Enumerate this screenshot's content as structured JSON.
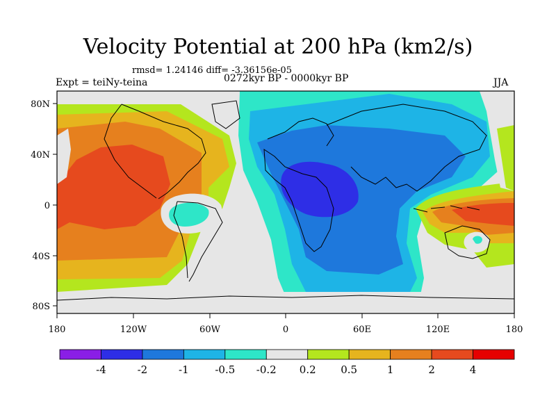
{
  "title": "Velocity Potential at 200 hPa (km2/s)",
  "stats": "rmsd= 1.24146 diff= -3.36156e-05",
  "experiment": "Expt = teiNy-teina",
  "period": "0272kyr BP - 0000kyr BP",
  "season": "JJA",
  "chart_data": {
    "type": "heatmap",
    "map_projection": "cylindrical-equidistant",
    "lon_range": [
      -180,
      180
    ],
    "lat_range": [
      -90,
      90
    ],
    "x_tick_labels": [
      "180",
      "120W",
      "60W",
      "0",
      "60E",
      "120E",
      "180"
    ],
    "y_tick_labels": [
      "80N",
      "40N",
      "0",
      "40S",
      "80S"
    ],
    "colorbar": {
      "tick_labels": [
        "-4",
        "-2",
        "-1",
        "-0.5",
        "-0.2",
        "0.2",
        "0.5",
        "1",
        "2",
        "4"
      ],
      "colors": [
        "#8a1ee6",
        "#2e2ee6",
        "#1e78dc",
        "#1eb4e6",
        "#2ee6c8",
        "#e6e6e6",
        "#b4e61e",
        "#e6b41e",
        "#e6801e",
        "#e64a1e",
        "#e60000"
      ]
    },
    "features": [
      {
        "region": "tropical Africa / Indian Ocean",
        "sign": "negative",
        "min_level": "-2"
      },
      {
        "region": "Maritime Continent / western Pacific",
        "sign": "positive",
        "max_level": "2"
      },
      {
        "region": "North Pacific",
        "sign": "positive",
        "max_level": "2"
      },
      {
        "region": "tropical South America",
        "sign": "negative",
        "min_level": "-0.5"
      }
    ]
  }
}
